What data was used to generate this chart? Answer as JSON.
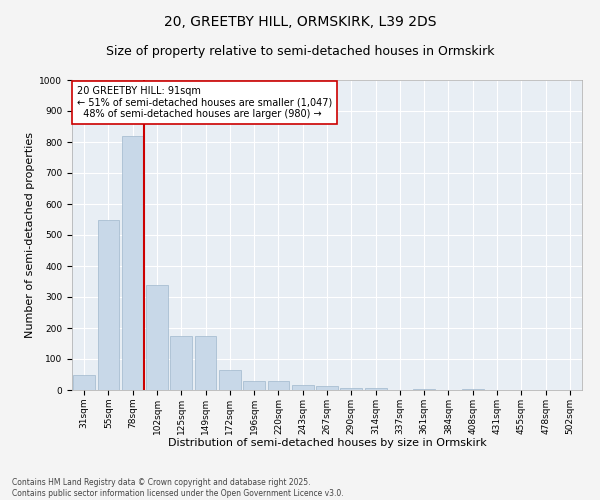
{
  "title_line1": "20, GREETBY HILL, ORMSKIRK, L39 2DS",
  "title_line2": "Size of property relative to semi-detached houses in Ormskirk",
  "xlabel": "Distribution of semi-detached houses by size in Ormskirk",
  "ylabel": "Number of semi-detached properties",
  "categories": [
    "31sqm",
    "55sqm",
    "78sqm",
    "102sqm",
    "125sqm",
    "149sqm",
    "172sqm",
    "196sqm",
    "220sqm",
    "243sqm",
    "267sqm",
    "290sqm",
    "314sqm",
    "337sqm",
    "361sqm",
    "384sqm",
    "408sqm",
    "431sqm",
    "455sqm",
    "478sqm",
    "502sqm"
  ],
  "values": [
    50,
    550,
    820,
    340,
    175,
    175,
    65,
    30,
    30,
    15,
    12,
    8,
    5,
    0,
    4,
    0,
    3,
    0,
    0,
    0,
    0
  ],
  "bar_color": "#c8d8e8",
  "bar_edge_color": "#a0b8cc",
  "vline_color": "#cc0000",
  "annotation_text": "20 GREETBY HILL: 91sqm\n← 51% of semi-detached houses are smaller (1,047)\n  48% of semi-detached houses are larger (980) →",
  "annotation_box_color": "#ffffff",
  "annotation_box_edge": "#cc0000",
  "ylim": [
    0,
    1000
  ],
  "yticks": [
    0,
    100,
    200,
    300,
    400,
    500,
    600,
    700,
    800,
    900,
    1000
  ],
  "fig_background_color": "#f4f4f4",
  "ax_background_color": "#e8eef4",
  "footer_text": "Contains HM Land Registry data © Crown copyright and database right 2025.\nContains public sector information licensed under the Open Government Licence v3.0.",
  "title_fontsize": 10,
  "subtitle_fontsize": 9,
  "tick_fontsize": 6.5,
  "label_fontsize": 8,
  "annotation_fontsize": 7,
  "footer_fontsize": 5.5
}
